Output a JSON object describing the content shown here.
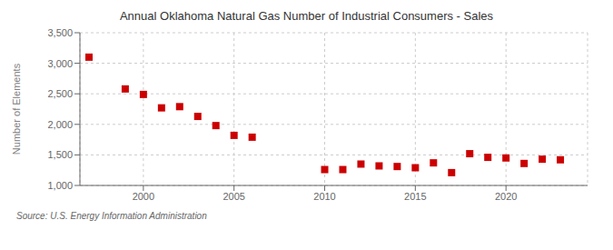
{
  "chart_data": {
    "type": "scatter",
    "title": "Annual Oklahoma Natural Gas Number of Industrial Consumers - Sales",
    "ylabel": "Number of Elements",
    "annotations": [
      "Source: U.S. Energy Information Administration"
    ],
    "x": [
      1997,
      1999,
      2000,
      2001,
      2002,
      2003,
      2004,
      2005,
      2006,
      2010,
      2011,
      2012,
      2013,
      2014,
      2015,
      2016,
      2017,
      2018,
      2019,
      2020,
      2021,
      2022,
      2023
    ],
    "values": [
      3100,
      2580,
      2490,
      2270,
      2290,
      2130,
      1980,
      1820,
      1790,
      1260,
      1260,
      1350,
      1320,
      1310,
      1290,
      1370,
      1210,
      1520,
      1460,
      1450,
      1360,
      1430,
      1420
    ],
    "color": "#cc0000",
    "marker": "square",
    "xlim": [
      1996.5,
      2024.5
    ],
    "xticks": [
      2000,
      2005,
      2010,
      2015,
      2020
    ],
    "ylim": [
      1000,
      3500
    ],
    "yticks": [
      {
        "value": 1000,
        "label": "1,000"
      },
      {
        "value": 1500,
        "label": "1,500"
      },
      {
        "value": 2000,
        "label": "2,000"
      },
      {
        "value": 2500,
        "label": "2,500"
      },
      {
        "value": 3000,
        "label": "3,000"
      },
      {
        "value": 3500,
        "label": "3,500"
      }
    ],
    "grid": true
  }
}
